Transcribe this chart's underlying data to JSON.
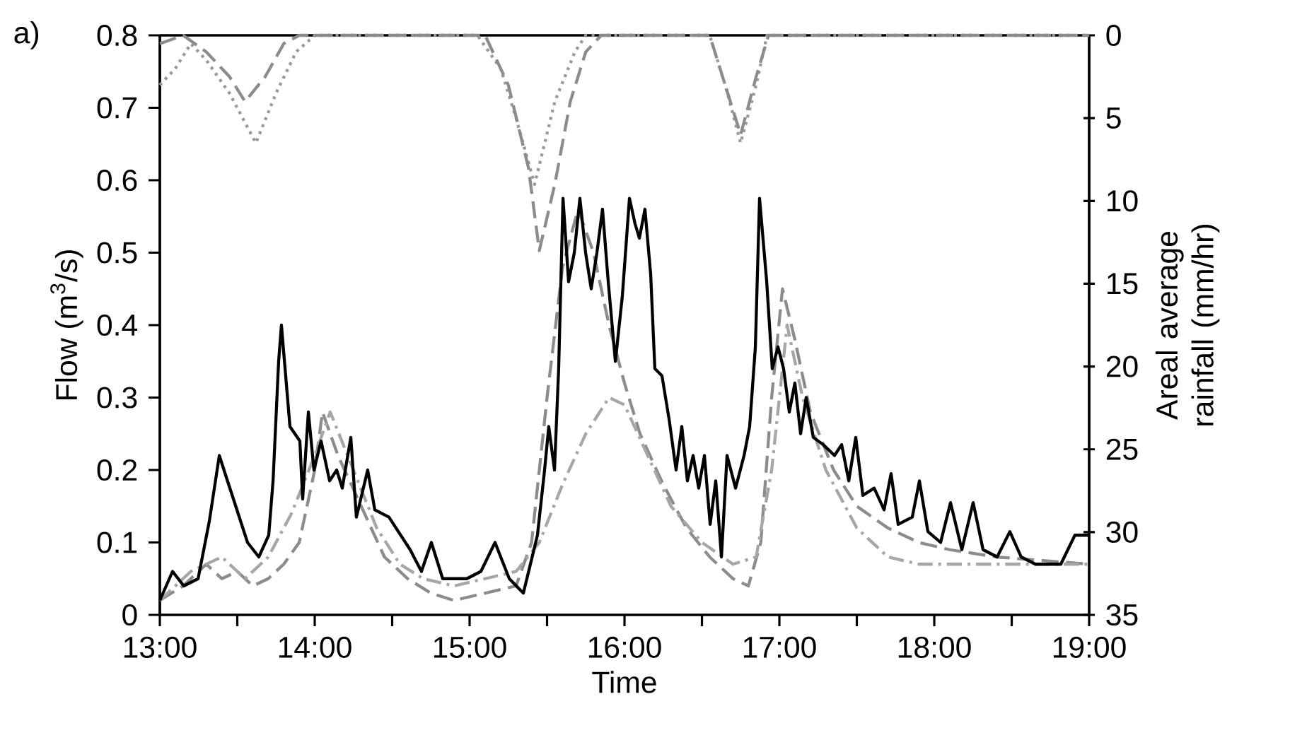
{
  "chart_data": {
    "type": "line",
    "xlabel": "Time",
    "ylabel": "Flow (m$^{3}$/s)",
    "y2label": "Areal average rainfall (mm/hr)",
    "annotations": [
      "a)"
    ],
    "xlim": [
      13,
      19
    ],
    "ylim": [
      0,
      0.8
    ],
    "y2lim": [
      35,
      0
    ],
    "xticks": [
      {
        "value": 13,
        "label": "13:00"
      },
      {
        "value": 13.5,
        "label": null
      },
      {
        "value": 14,
        "label": "14:00"
      },
      {
        "value": 14.5,
        "label": null
      },
      {
        "value": 15,
        "label": "15:00"
      },
      {
        "value": 15.5,
        "label": null
      },
      {
        "value": 16,
        "label": "16:00"
      },
      {
        "value": 16.5,
        "label": null
      },
      {
        "value": 17,
        "label": "17:00"
      },
      {
        "value": 17.5,
        "label": null
      },
      {
        "value": 18,
        "label": "18:00"
      },
      {
        "value": 18.5,
        "label": null
      },
      {
        "value": 19,
        "label": "19:00"
      }
    ],
    "yticks": [
      0,
      0.1,
      0.2,
      0.3,
      0.4,
      0.5,
      0.6,
      0.7,
      0.8
    ],
    "y2ticks": [
      0,
      5,
      10,
      15,
      20,
      25,
      30,
      35
    ],
    "marker": "none",
    "series": [
      {
        "color": "#999999",
        "line_style": "dotted",
        "axis": "y2",
        "x": [
          13.0,
          13.1,
          13.2,
          13.3,
          13.45,
          13.62,
          13.75,
          13.88,
          14.0,
          15.05,
          15.2,
          15.3,
          15.42,
          15.55,
          15.68,
          15.75,
          16.55,
          16.65,
          16.75,
          16.85,
          16.92,
          19.0
        ],
        "values": [
          3,
          2,
          0.5,
          1.5,
          3.5,
          6.5,
          3.5,
          1,
          0,
          0,
          2,
          5,
          9,
          4,
          1,
          0,
          0,
          3,
          6.5,
          3,
          0,
          0
        ]
      },
      {
        "color": "#8c8c8c",
        "line_style": "dashed",
        "axis": "y2",
        "x": [
          13.0,
          13.15,
          13.3,
          13.45,
          13.55,
          13.68,
          13.8,
          13.9,
          15.1,
          15.25,
          15.38,
          15.45,
          15.55,
          15.65,
          15.75,
          15.85,
          16.55,
          16.65,
          16.75,
          16.85,
          16.93,
          19.0
        ],
        "values": [
          0.5,
          0,
          1,
          2.5,
          4,
          2.5,
          0.5,
          0,
          0,
          3,
          8,
          13,
          9,
          4,
          1,
          0,
          0,
          3,
          6,
          2.5,
          0,
          0
        ]
      },
      {
        "color": "#8c8c8c",
        "line_style": "dashed",
        "x": [
          13.0,
          13.15,
          13.3,
          13.4,
          13.5,
          13.6,
          13.7,
          13.8,
          13.9,
          14.0,
          14.05,
          14.15,
          14.3,
          14.45,
          14.6,
          14.75,
          14.9,
          15.1,
          15.3,
          15.4,
          15.5,
          15.6,
          15.7,
          15.8,
          15.9,
          16.0,
          16.1,
          16.25,
          16.4,
          16.55,
          16.7,
          16.8,
          16.88,
          16.95,
          17.02,
          17.1,
          17.2,
          17.35,
          17.5,
          17.7,
          17.9,
          18.1,
          18.4,
          18.7,
          19.0
        ],
        "values": [
          0.02,
          0.04,
          0.07,
          0.05,
          0.06,
          0.04,
          0.05,
          0.07,
          0.1,
          0.2,
          0.28,
          0.22,
          0.15,
          0.08,
          0.05,
          0.03,
          0.02,
          0.03,
          0.04,
          0.1,
          0.3,
          0.48,
          0.56,
          0.5,
          0.4,
          0.32,
          0.25,
          0.18,
          0.12,
          0.08,
          0.05,
          0.04,
          0.1,
          0.3,
          0.45,
          0.38,
          0.28,
          0.2,
          0.15,
          0.12,
          0.1,
          0.09,
          0.08,
          0.075,
          0.07
        ]
      },
      {
        "color": "#a6a6a6",
        "line_style": "dashdot",
        "x": [
          13.0,
          13.2,
          13.4,
          13.55,
          13.7,
          13.85,
          14.0,
          14.1,
          14.25,
          14.4,
          14.55,
          14.7,
          14.9,
          15.1,
          15.3,
          15.45,
          15.6,
          15.75,
          15.9,
          16.0,
          16.15,
          16.3,
          16.5,
          16.7,
          16.85,
          16.95,
          17.05,
          17.15,
          17.3,
          17.5,
          17.7,
          17.9,
          18.2,
          18.5,
          19.0
        ],
        "values": [
          0.02,
          0.06,
          0.08,
          0.05,
          0.08,
          0.14,
          0.22,
          0.28,
          0.2,
          0.12,
          0.07,
          0.05,
          0.04,
          0.05,
          0.06,
          0.1,
          0.18,
          0.25,
          0.3,
          0.29,
          0.22,
          0.15,
          0.1,
          0.07,
          0.08,
          0.2,
          0.4,
          0.3,
          0.2,
          0.12,
          0.08,
          0.07,
          0.07,
          0.07,
          0.07
        ]
      },
      {
        "color": "#000000",
        "line_style": "solid",
        "x": [
          13.0,
          13.082,
          13.155,
          13.247,
          13.32,
          13.384,
          13.429,
          13.475,
          13.566,
          13.639,
          13.703,
          13.731,
          13.767,
          13.785,
          13.84,
          13.904,
          13.922,
          13.959,
          13.995,
          14.041,
          14.096,
          14.142,
          14.178,
          14.233,
          14.269,
          14.342,
          14.388,
          14.479,
          14.616,
          14.689,
          14.753,
          14.826,
          14.89,
          14.982,
          15.073,
          15.164,
          15.256,
          15.347,
          15.438,
          15.484,
          15.511,
          15.548,
          15.575,
          15.603,
          15.639,
          15.676,
          15.712,
          15.749,
          15.785,
          15.822,
          15.858,
          15.895,
          15.941,
          15.986,
          16.032,
          16.068,
          16.096,
          16.132,
          16.169,
          16.196,
          16.242,
          16.288,
          16.333,
          16.37,
          16.406,
          16.443,
          16.479,
          16.516,
          16.553,
          16.589,
          16.626,
          16.662,
          16.717,
          16.772,
          16.808,
          16.845,
          16.872,
          16.918,
          16.954,
          16.991,
          17.027,
          17.064,
          17.1,
          17.137,
          17.173,
          17.219,
          17.283,
          17.356,
          17.402,
          17.448,
          17.493,
          17.539,
          17.612,
          17.676,
          17.721,
          17.767,
          17.858,
          17.904,
          17.959,
          18.041,
          18.105,
          18.178,
          18.251,
          18.315,
          18.406,
          18.488,
          18.561,
          18.653,
          18.817,
          18.908,
          19.0
        ],
        "values": [
          0.02,
          0.06,
          0.04,
          0.05,
          0.13,
          0.22,
          0.19,
          0.16,
          0.1,
          0.08,
          0.11,
          0.185,
          0.35,
          0.4,
          0.26,
          0.24,
          0.16,
          0.28,
          0.2,
          0.24,
          0.185,
          0.2,
          0.175,
          0.245,
          0.135,
          0.2,
          0.145,
          0.135,
          0.09,
          0.06,
          0.1,
          0.05,
          0.05,
          0.05,
          0.06,
          0.1,
          0.05,
          0.03,
          0.11,
          0.2,
          0.26,
          0.2,
          0.34,
          0.575,
          0.46,
          0.5,
          0.575,
          0.5,
          0.45,
          0.5,
          0.56,
          0.46,
          0.35,
          0.44,
          0.575,
          0.54,
          0.52,
          0.56,
          0.47,
          0.34,
          0.33,
          0.27,
          0.2,
          0.26,
          0.185,
          0.22,
          0.175,
          0.22,
          0.125,
          0.185,
          0.08,
          0.22,
          0.175,
          0.22,
          0.26,
          0.37,
          0.575,
          0.46,
          0.34,
          0.37,
          0.34,
          0.28,
          0.32,
          0.25,
          0.3,
          0.245,
          0.235,
          0.22,
          0.235,
          0.185,
          0.245,
          0.165,
          0.175,
          0.145,
          0.195,
          0.125,
          0.135,
          0.185,
          0.115,
          0.1,
          0.155,
          0.09,
          0.155,
          0.09,
          0.08,
          0.115,
          0.08,
          0.07,
          0.07,
          0.11,
          0.11
        ]
      }
    ]
  }
}
